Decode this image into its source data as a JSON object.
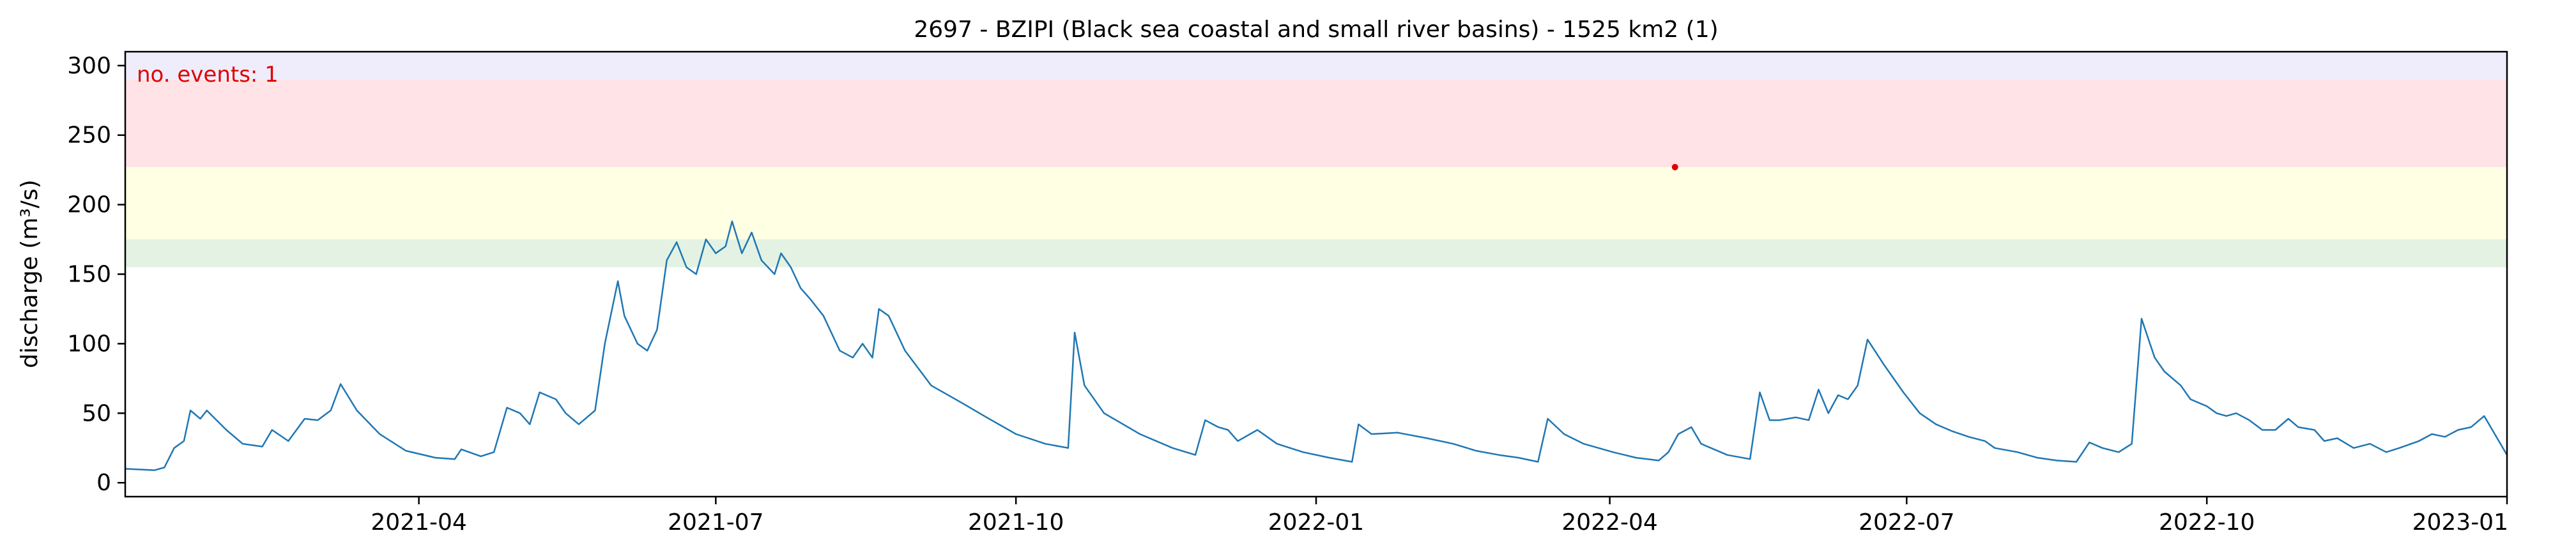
{
  "chart_data": {
    "type": "line",
    "title": "2697 - BZIPI (Black sea coastal and small river basins) - 1525 km2 (1)",
    "xlabel": "",
    "ylabel": "discharge (m³/s)",
    "xlim": [
      "2021-01-01",
      "2023-01-01"
    ],
    "ylim": [
      -10,
      310
    ],
    "y_ticks": [
      0,
      50,
      100,
      150,
      200,
      250,
      300
    ],
    "x_ticks": [
      "2021-04",
      "2021-07",
      "2021-10",
      "2022-01",
      "2022-04",
      "2022-07",
      "2022-10",
      "2023-01"
    ],
    "annotation": "no. events: 1",
    "bands": [
      {
        "from": 155,
        "to": 175,
        "color": "#e3f2e3"
      },
      {
        "from": 175,
        "to": 227,
        "color": "#ffffe3"
      },
      {
        "from": 227,
        "to": 290,
        "color": "#ffe3e6"
      },
      {
        "from": 290,
        "to": 310,
        "color": "#efedfb"
      }
    ],
    "events": [
      {
        "date": "2022-04-21",
        "value": 227
      }
    ],
    "series": [
      {
        "name": "discharge",
        "color": "#1f77b4",
        "points": [
          [
            "2021-01-01",
            10
          ],
          [
            "2021-01-10",
            9
          ],
          [
            "2021-01-13",
            11
          ],
          [
            "2021-01-16",
            25
          ],
          [
            "2021-01-19",
            30
          ],
          [
            "2021-01-21",
            52
          ],
          [
            "2021-01-24",
            46
          ],
          [
            "2021-01-26",
            52
          ],
          [
            "2021-02-01",
            38
          ],
          [
            "2021-02-06",
            28
          ],
          [
            "2021-02-12",
            26
          ],
          [
            "2021-02-15",
            38
          ],
          [
            "2021-02-20",
            30
          ],
          [
            "2021-02-25",
            46
          ],
          [
            "2021-03-01",
            45
          ],
          [
            "2021-03-05",
            52
          ],
          [
            "2021-03-08",
            71
          ],
          [
            "2021-03-13",
            52
          ],
          [
            "2021-03-20",
            35
          ],
          [
            "2021-03-28",
            23
          ],
          [
            "2021-04-06",
            18
          ],
          [
            "2021-04-12",
            17
          ],
          [
            "2021-04-14",
            24
          ],
          [
            "2021-04-20",
            19
          ],
          [
            "2021-04-24",
            22
          ],
          [
            "2021-04-28",
            54
          ],
          [
            "2021-05-02",
            50
          ],
          [
            "2021-05-05",
            42
          ],
          [
            "2021-05-08",
            65
          ],
          [
            "2021-05-13",
            60
          ],
          [
            "2021-05-16",
            50
          ],
          [
            "2021-05-20",
            42
          ],
          [
            "2021-05-25",
            52
          ],
          [
            "2021-05-28",
            100
          ],
          [
            "2021-06-01",
            145
          ],
          [
            "2021-06-03",
            120
          ],
          [
            "2021-06-07",
            100
          ],
          [
            "2021-06-10",
            95
          ],
          [
            "2021-06-13",
            110
          ],
          [
            "2021-06-16",
            160
          ],
          [
            "2021-06-19",
            173
          ],
          [
            "2021-06-22",
            155
          ],
          [
            "2021-06-25",
            150
          ],
          [
            "2021-06-28",
            175
          ],
          [
            "2021-07-01",
            165
          ],
          [
            "2021-07-04",
            170
          ],
          [
            "2021-07-06",
            188
          ],
          [
            "2021-07-09",
            165
          ],
          [
            "2021-07-12",
            180
          ],
          [
            "2021-07-15",
            160
          ],
          [
            "2021-07-19",
            150
          ],
          [
            "2021-07-21",
            165
          ],
          [
            "2021-07-24",
            155
          ],
          [
            "2021-07-27",
            140
          ],
          [
            "2021-07-30",
            132
          ],
          [
            "2021-08-03",
            120
          ],
          [
            "2021-08-08",
            95
          ],
          [
            "2021-08-12",
            90
          ],
          [
            "2021-08-15",
            100
          ],
          [
            "2021-08-18",
            90
          ],
          [
            "2021-08-20",
            125
          ],
          [
            "2021-08-23",
            120
          ],
          [
            "2021-08-28",
            95
          ],
          [
            "2021-09-05",
            70
          ],
          [
            "2021-09-14",
            58
          ],
          [
            "2021-09-22",
            47
          ],
          [
            "2021-10-01",
            35
          ],
          [
            "2021-10-10",
            28
          ],
          [
            "2021-10-17",
            25
          ],
          [
            "2021-10-19",
            108
          ],
          [
            "2021-10-22",
            70
          ],
          [
            "2021-10-28",
            50
          ],
          [
            "2021-11-08",
            35
          ],
          [
            "2021-11-18",
            25
          ],
          [
            "2021-11-25",
            20
          ],
          [
            "2021-11-28",
            45
          ],
          [
            "2021-12-02",
            40
          ],
          [
            "2021-12-05",
            38
          ],
          [
            "2021-12-08",
            30
          ],
          [
            "2021-12-14",
            38
          ],
          [
            "2021-12-20",
            28
          ],
          [
            "2021-12-28",
            22
          ],
          [
            "2022-01-05",
            18
          ],
          [
            "2022-01-12",
            15
          ],
          [
            "2022-01-14",
            42
          ],
          [
            "2022-01-18",
            35
          ],
          [
            "2022-01-26",
            36
          ],
          [
            "2022-02-04",
            32
          ],
          [
            "2022-02-12",
            28
          ],
          [
            "2022-02-19",
            23
          ],
          [
            "2022-02-26",
            20
          ],
          [
            "2022-03-04",
            18
          ],
          [
            "2022-03-10",
            15
          ],
          [
            "2022-03-13",
            46
          ],
          [
            "2022-03-18",
            35
          ],
          [
            "2022-03-24",
            28
          ],
          [
            "2022-04-02",
            22
          ],
          [
            "2022-04-09",
            18
          ],
          [
            "2022-04-16",
            16
          ],
          [
            "2022-04-19",
            22
          ],
          [
            "2022-04-22",
            35
          ],
          [
            "2022-04-26",
            40
          ],
          [
            "2022-04-29",
            28
          ],
          [
            "2022-05-07",
            20
          ],
          [
            "2022-05-14",
            17
          ],
          [
            "2022-05-17",
            65
          ],
          [
            "2022-05-20",
            45
          ],
          [
            "2022-05-23",
            45
          ],
          [
            "2022-05-28",
            47
          ],
          [
            "2022-06-01",
            45
          ],
          [
            "2022-06-04",
            67
          ],
          [
            "2022-06-07",
            50
          ],
          [
            "2022-06-10",
            63
          ],
          [
            "2022-06-13",
            60
          ],
          [
            "2022-06-16",
            70
          ],
          [
            "2022-06-19",
            103
          ],
          [
            "2022-06-24",
            85
          ],
          [
            "2022-06-30",
            65
          ],
          [
            "2022-07-05",
            50
          ],
          [
            "2022-07-10",
            42
          ],
          [
            "2022-07-15",
            37
          ],
          [
            "2022-07-20",
            33
          ],
          [
            "2022-07-25",
            30
          ],
          [
            "2022-07-28",
            25
          ],
          [
            "2022-08-04",
            22
          ],
          [
            "2022-08-10",
            18
          ],
          [
            "2022-08-16",
            16
          ],
          [
            "2022-08-22",
            15
          ],
          [
            "2022-08-26",
            29
          ],
          [
            "2022-08-30",
            25
          ],
          [
            "2022-09-04",
            22
          ],
          [
            "2022-09-08",
            28
          ],
          [
            "2022-09-11",
            118
          ],
          [
            "2022-09-15",
            90
          ],
          [
            "2022-09-18",
            80
          ],
          [
            "2022-09-23",
            70
          ],
          [
            "2022-09-26",
            60
          ],
          [
            "2022-10-01",
            55
          ],
          [
            "2022-10-04",
            50
          ],
          [
            "2022-10-07",
            48
          ],
          [
            "2022-10-10",
            50
          ],
          [
            "2022-10-14",
            45
          ],
          [
            "2022-10-18",
            38
          ],
          [
            "2022-10-22",
            38
          ],
          [
            "2022-10-26",
            46
          ],
          [
            "2022-10-29",
            40
          ],
          [
            "2022-11-03",
            38
          ],
          [
            "2022-11-06",
            30
          ],
          [
            "2022-11-10",
            32
          ],
          [
            "2022-11-15",
            25
          ],
          [
            "2022-11-20",
            28
          ],
          [
            "2022-11-25",
            22
          ],
          [
            "2022-11-29",
            25
          ],
          [
            "2022-12-05",
            30
          ],
          [
            "2022-12-09",
            35
          ],
          [
            "2022-12-13",
            33
          ],
          [
            "2022-12-17",
            38
          ],
          [
            "2022-12-21",
            40
          ],
          [
            "2022-12-25",
            48
          ],
          [
            "2023-01-01",
            20
          ]
        ]
      }
    ]
  }
}
